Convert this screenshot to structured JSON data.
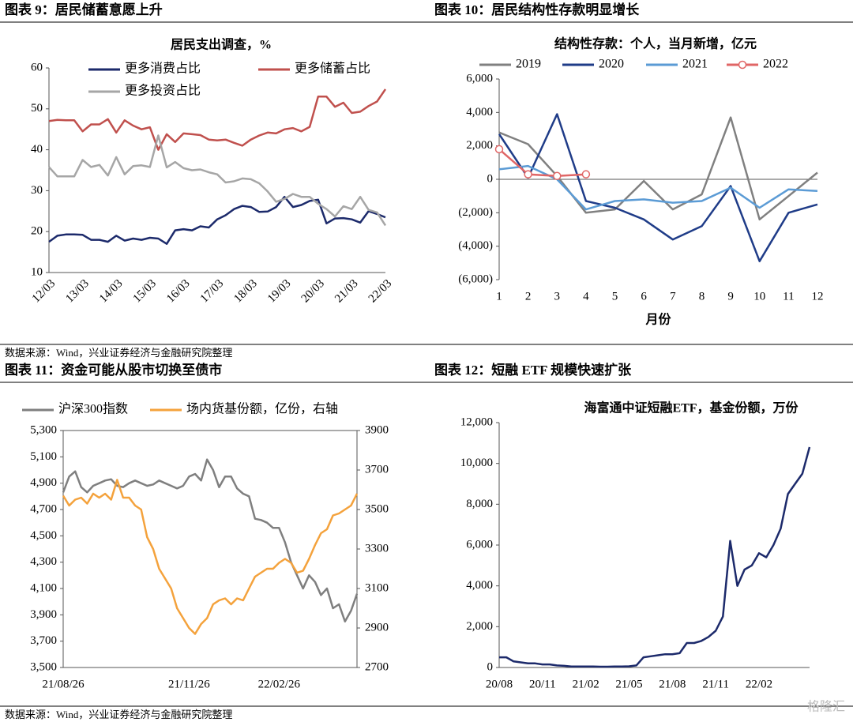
{
  "chart_data": [
    {
      "type": "line",
      "heading": "图表 9：居民储蓄意愿上升",
      "title": "居民支出调查，%",
      "categories": [
        "12/03",
        null,
        null,
        null,
        "13/03",
        null,
        null,
        null,
        "14/03",
        null,
        null,
        null,
        "15/03",
        null,
        null,
        null,
        "16/03",
        null,
        null,
        null,
        "17/03",
        null,
        null,
        null,
        "18/03",
        null,
        null,
        null,
        "19/03",
        null,
        null,
        null,
        "20/03",
        null,
        null,
        null,
        "21/03",
        null,
        null,
        null,
        "22/03"
      ],
      "series": [
        {
          "name": "更多消费占比",
          "color": "#1c2a6b",
          "values": [
            17.5,
            19,
            19.3,
            19.3,
            19.2,
            18,
            18,
            17.5,
            19,
            17.8,
            18.3,
            18,
            18.5,
            18.3,
            17,
            20.3,
            20.6,
            20.3,
            21.3,
            21,
            23,
            24,
            25.5,
            26.3,
            26,
            24.8,
            24.9,
            26,
            28.5,
            26,
            26.5,
            27.5,
            27.8,
            22,
            23.2,
            23.3,
            23,
            22.2,
            25,
            24.3,
            23.5
          ]
        },
        {
          "name": "更多储蓄占比",
          "color": "#c0504d",
          "values": [
            47,
            47.3,
            47.2,
            47.2,
            44.5,
            46.2,
            46.2,
            47.5,
            44.2,
            47.2,
            45.9,
            45,
            45.5,
            40,
            43.8,
            41.9,
            44,
            43.8,
            43.6,
            42.5,
            42.3,
            42.5,
            41.7,
            41,
            42.5,
            43.5,
            44.2,
            44,
            45,
            45.3,
            44.5,
            45.6,
            53,
            53,
            50.5,
            51.5,
            49,
            49.3,
            50.7,
            51.8,
            54.8
          ]
        },
        {
          "name": "更多投资占比",
          "color": "#a6a6a6",
          "values": [
            35.8,
            33.5,
            33.5,
            33.5,
            37.5,
            35.8,
            36.3,
            33.7,
            38.2,
            34,
            36,
            36.2,
            35.8,
            43.5,
            35.7,
            37,
            35.5,
            35,
            35.2,
            34.5,
            34,
            32,
            32.3,
            33,
            32.8,
            31.8,
            29.8,
            27.3,
            28,
            29.2,
            28.5,
            28.5,
            26.8,
            25.5,
            23.7,
            26.2,
            25.5,
            28.5,
            25.3,
            24.7,
            21.5
          ]
        }
      ],
      "ylim": [
        10,
        60
      ],
      "yticks": [
        10,
        20,
        30,
        40,
        50,
        60
      ]
    },
    {
      "type": "line",
      "heading": "图表 10：居民结构性存款明显增长",
      "title": "结构性存款：个人，当月新增，亿元",
      "xlabel": "月份",
      "categories": [
        "1",
        "2",
        "3",
        "4",
        "5",
        "6",
        "7",
        "8",
        "9",
        "10",
        "11",
        "12"
      ],
      "series": [
        {
          "name": "2019",
          "color": "#808080",
          "values": [
            2800,
            2100,
            200,
            -2000,
            -1800,
            -100,
            -1800,
            -900,
            3700,
            -2400,
            -1000,
            400
          ]
        },
        {
          "name": "2020",
          "color": "#1f3c88",
          "values": [
            2700,
            100,
            3900,
            -1300,
            -1700,
            -2400,
            -3600,
            -2800,
            -400,
            -4900,
            -2000,
            -1500
          ]
        },
        {
          "name": "2021",
          "color": "#5b9bd5",
          "values": [
            600,
            800,
            0,
            -1800,
            -1300,
            -1200,
            -1400,
            -1300,
            -500,
            -1700,
            -600,
            -700
          ]
        },
        {
          "name": "2022",
          "color": "#e06666",
          "marker": "circle",
          "values": [
            1800,
            300,
            200,
            300,
            null,
            null,
            null,
            null,
            null,
            null,
            null,
            null
          ]
        }
      ],
      "ylim": [
        -6000,
        6000
      ],
      "yticks": [
        {
          "value": -6000,
          "label": "(6,000)"
        },
        {
          "value": -4000,
          "label": "(4,000)"
        },
        {
          "value": -2000,
          "label": "(2,000)"
        },
        0,
        {
          "value": 2000,
          "label": "2,000"
        },
        {
          "value": 4000,
          "label": "4,000"
        },
        {
          "value": 6000,
          "label": "6,000"
        }
      ]
    },
    {
      "type": "line",
      "heading": "图表 11：资金可能从股市切换至债市",
      "categories": [
        "21/08/26",
        null,
        null,
        null,
        null,
        null,
        null,
        null,
        null,
        null,
        null,
        null,
        null,
        null,
        null,
        null,
        null,
        null,
        null,
        null,
        null,
        "21/11/26",
        null,
        null,
        null,
        null,
        null,
        null,
        null,
        null,
        null,
        null,
        null,
        null,
        null,
        null,
        "22/02/26",
        null,
        null,
        null,
        null,
        null,
        null,
        null,
        null,
        null,
        null,
        null,
        null,
        null
      ],
      "series": [
        {
          "name": "沪深300指数",
          "color": "#7f7f7f",
          "values": [
            4830,
            4950,
            4990,
            4870,
            4830,
            4880,
            4900,
            4920,
            4930,
            4880,
            4870,
            4900,
            4920,
            4900,
            4880,
            4890,
            4920,
            4900,
            4880,
            4860,
            4880,
            4950,
            4970,
            4920,
            5080,
            5000,
            4870,
            4950,
            4950,
            4860,
            4820,
            4800,
            4630,
            4620,
            4600,
            4560,
            4560,
            4450,
            4300,
            4200,
            4100,
            4200,
            4150,
            4050,
            4100,
            3950,
            3980,
            3850,
            3930,
            4060
          ]
        },
        {
          "name": "场内货基份额，亿份，右轴",
          "color": "#f4a23c",
          "axis": "y2",
          "values": [
            3570,
            3520,
            3550,
            3560,
            3530,
            3580,
            3560,
            3580,
            3550,
            3650,
            3560,
            3560,
            3520,
            3500,
            3360,
            3300,
            3200,
            3150,
            3100,
            3000,
            2950,
            2900,
            2870,
            2920,
            2950,
            3020,
            3040,
            3050,
            3020,
            3050,
            3040,
            3100,
            3160,
            3180,
            3200,
            3200,
            3230,
            3250,
            3230,
            3180,
            3190,
            3250,
            3320,
            3380,
            3400,
            3470,
            3480,
            3500,
            3520,
            3580
          ]
        }
      ],
      "ylim": [
        3500,
        5300
      ],
      "yticks": [
        {
          "value": 3500,
          "label": "3,500"
        },
        {
          "value": 3700,
          "label": "3,700"
        },
        {
          "value": 3900,
          "label": "3,900"
        },
        {
          "value": 4100,
          "label": "4,100"
        },
        {
          "value": 4300,
          "label": "4,300"
        },
        {
          "value": 4500,
          "label": "4,500"
        },
        {
          "value": 4700,
          "label": "4,700"
        },
        {
          "value": 4900,
          "label": "4,900"
        },
        {
          "value": 5100,
          "label": "5,100"
        },
        {
          "value": 5300,
          "label": "5,300"
        }
      ],
      "y2lim": [
        2700,
        3900
      ],
      "y2ticks": [
        2700,
        2900,
        3100,
        3300,
        3500,
        3700,
        3900
      ]
    },
    {
      "type": "line",
      "heading": "图表 12：短融 ETF 规模快速扩张",
      "title": "海富通中证短融ETF，基金份额，万份",
      "categories": [
        "20/08",
        null,
        null,
        null,
        null,
        null,
        "20/11",
        null,
        null,
        null,
        null,
        null,
        "21/02",
        null,
        null,
        null,
        null,
        null,
        "21/05",
        null,
        null,
        null,
        null,
        null,
        "21/08",
        null,
        null,
        null,
        null,
        null,
        "21/11",
        null,
        null,
        null,
        null,
        null,
        "22/02",
        null,
        null,
        null,
        null,
        null,
        null,
        null
      ],
      "series": [
        {
          "name": "海富通中证短融ETF",
          "color": "#1c2a6b",
          "values": [
            500,
            500,
            300,
            250,
            200,
            200,
            150,
            150,
            100,
            80,
            50,
            50,
            50,
            50,
            40,
            40,
            50,
            50,
            60,
            100,
            500,
            550,
            600,
            650,
            650,
            700,
            1200,
            1200,
            1300,
            1500,
            1800,
            2500,
            6200,
            4000,
            4800,
            5000,
            5600,
            5400,
            6000,
            6800,
            8500,
            9000,
            9500,
            10800
          ]
        }
      ],
      "ylim": [
        0,
        12000
      ],
      "yticks": [
        0,
        {
          "value": 2000,
          "label": "2,000"
        },
        {
          "value": 4000,
          "label": "4,000"
        },
        {
          "value": 6000,
          "label": "6,000"
        },
        {
          "value": 8000,
          "label": "8,000"
        },
        {
          "value": 10000,
          "label": "10,000"
        },
        {
          "value": 12000,
          "label": "12,000"
        }
      ]
    }
  ],
  "sources": [
    "数据来源：Wind，兴业证券经济与金融研究院整理",
    "数据来源：Wind，兴业证券经济与金融研究院整理"
  ],
  "watermark": "格隆汇"
}
